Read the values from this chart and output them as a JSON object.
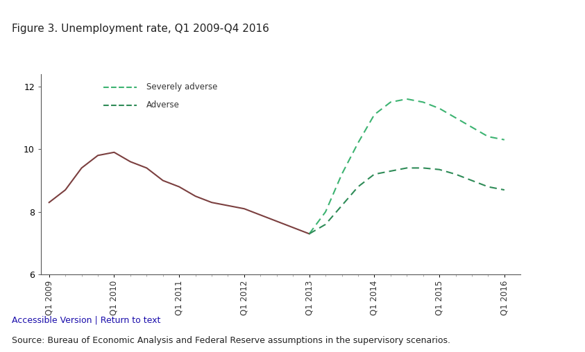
{
  "title": "Figure 3. Unemployment rate, Q1 2009-Q4 2016",
  "fig_bg": "#efefef",
  "plot_bg": "#ffffff",
  "source_text": "Source: Bureau of Economic Analysis and Federal Reserve assumptions in the supervisory scenarios.",
  "accessible_text": "Accessible Version | Return to text",
  "x_labels": [
    "Q1 2009",
    "Q1 2010",
    "Q1 2011",
    "Q1 2012",
    "Q1 2013",
    "Q1 2014",
    "Q1 2015",
    "Q1 2016"
  ],
  "x_tick_positions": [
    0,
    4,
    8,
    12,
    16,
    20,
    24,
    28
  ],
  "ylim": [
    6,
    12.4
  ],
  "yticks": [
    6,
    8,
    10,
    12
  ],
  "actual": {
    "x": [
      0,
      1,
      2,
      3,
      4,
      5,
      6,
      7,
      8,
      9,
      10,
      11,
      12,
      13,
      14,
      15,
      16
    ],
    "y": [
      8.3,
      8.7,
      9.4,
      9.8,
      9.9,
      9.6,
      9.4,
      9.0,
      8.8,
      8.5,
      8.3,
      8.2,
      8.1,
      7.9,
      7.7,
      7.5,
      7.3
    ],
    "color": "#7b3f3f",
    "linewidth": 1.5
  },
  "severely_adverse": {
    "x": [
      16,
      17,
      18,
      19,
      20,
      21,
      22,
      23,
      24,
      25,
      26,
      27,
      28
    ],
    "y": [
      7.3,
      8.0,
      9.2,
      10.2,
      11.1,
      11.5,
      11.6,
      11.5,
      11.3,
      11.0,
      10.7,
      10.4,
      10.3
    ],
    "color": "#3cb371",
    "linewidth": 1.5,
    "dash": [
      5,
      3
    ]
  },
  "adverse": {
    "x": [
      16,
      17,
      18,
      19,
      20,
      21,
      22,
      23,
      24,
      25,
      26,
      27,
      28
    ],
    "y": [
      7.3,
      7.6,
      8.2,
      8.8,
      9.2,
      9.3,
      9.4,
      9.4,
      9.35,
      9.2,
      9.0,
      8.8,
      8.7
    ],
    "color": "#2e8b57",
    "linewidth": 1.5,
    "dash": [
      5,
      3
    ]
  },
  "legend": {
    "severely_adverse_label": "Severely adverse",
    "adverse_label": "Adverse",
    "color_severe": "#3cb371",
    "color_adverse": "#2e8b57"
  }
}
